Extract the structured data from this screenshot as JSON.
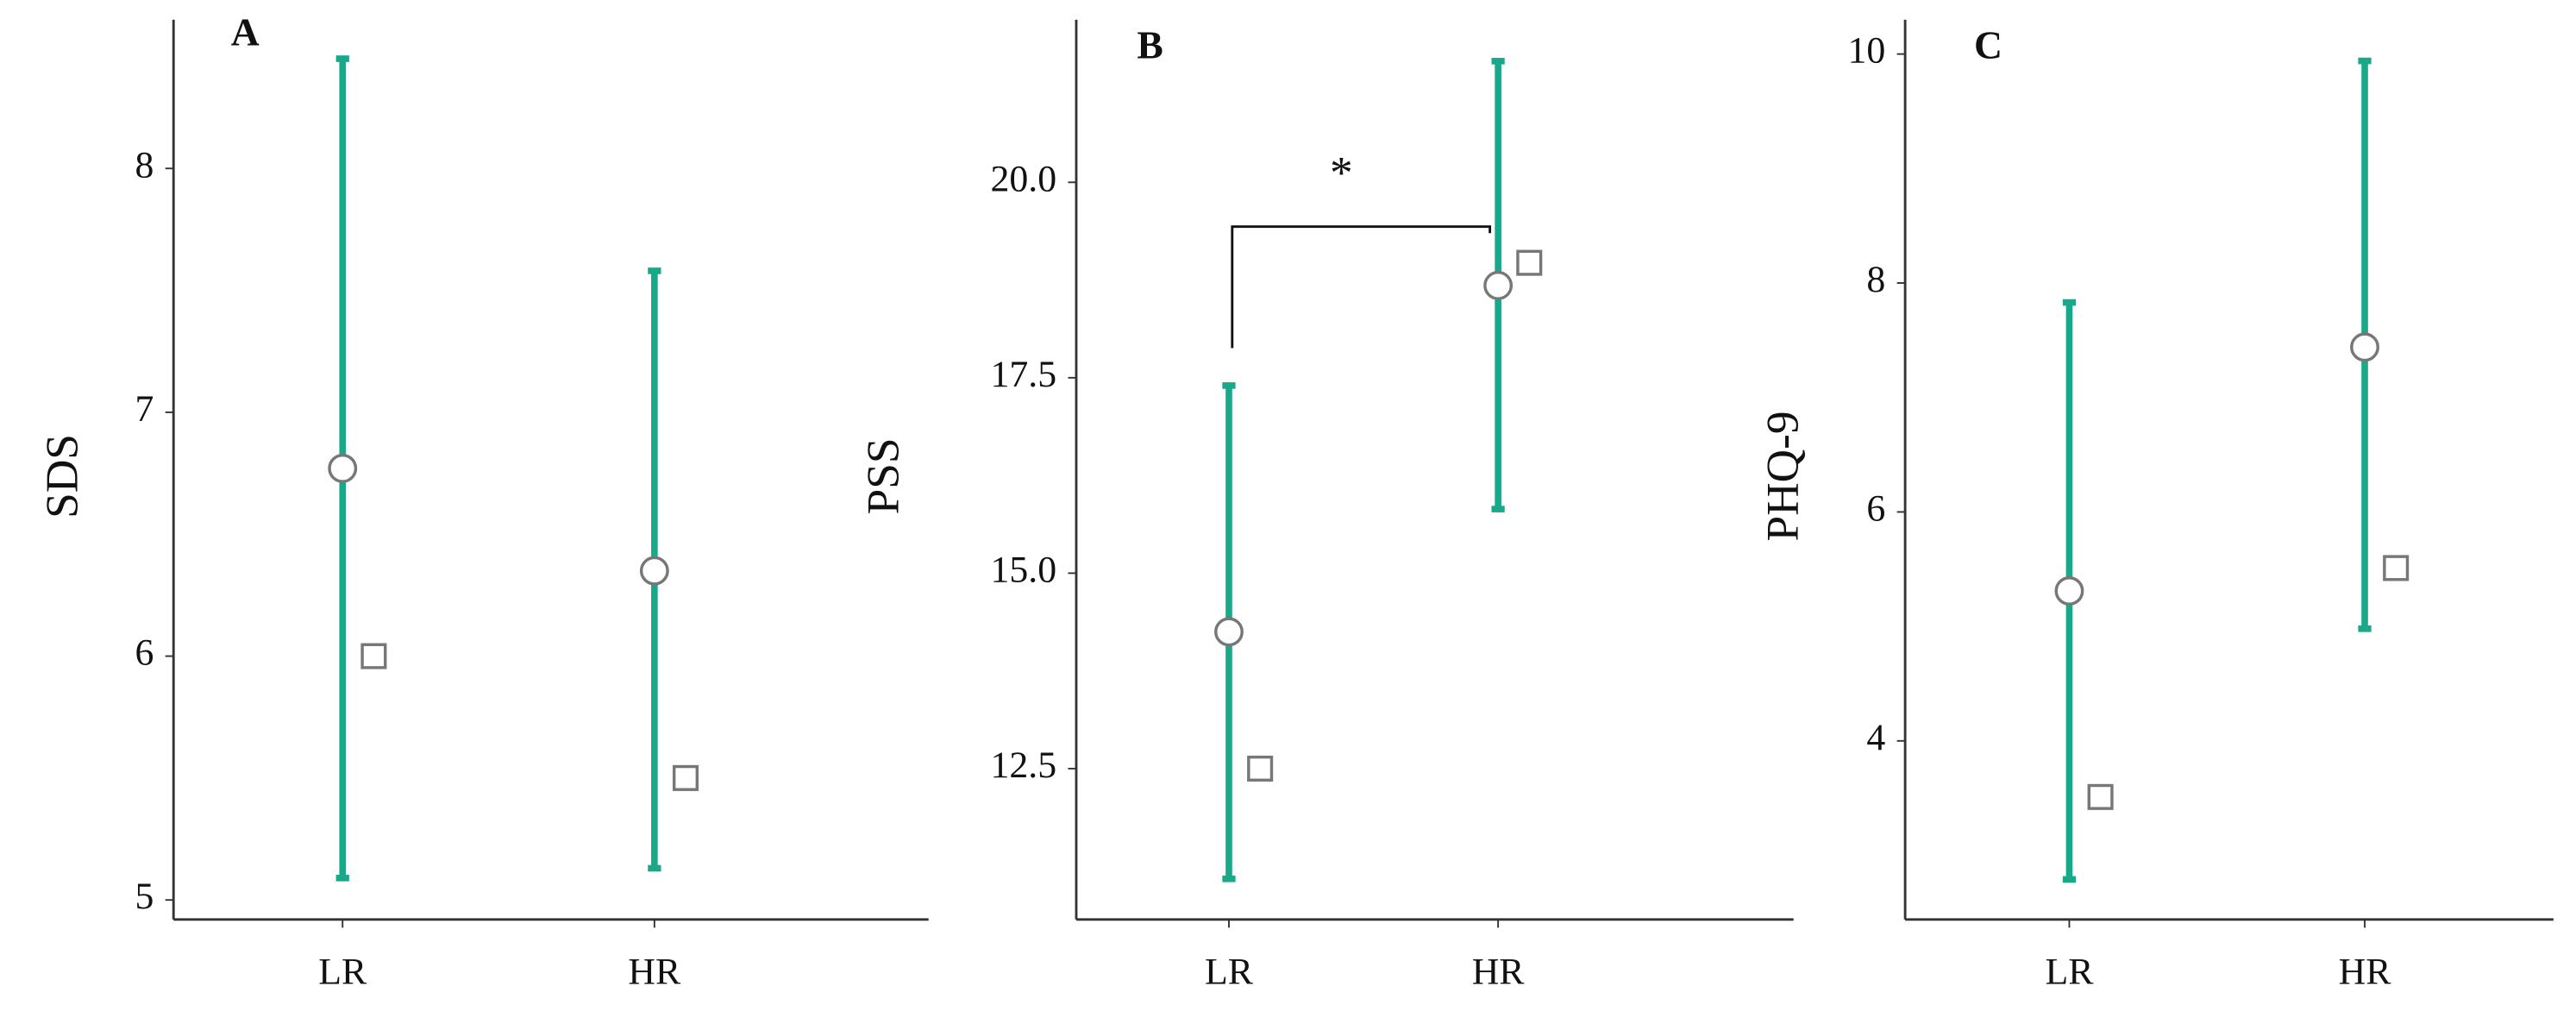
{
  "chart_data": [
    {
      "type": "errorbar",
      "panel_label": "A",
      "y_label": "SDS",
      "categories": [
        "LR",
        "HR"
      ],
      "values": [
        6.77,
        6.35
      ],
      "lower": [
        5.09,
        5.13
      ],
      "upper": [
        8.45,
        7.58
      ],
      "square_values": [
        6.0,
        5.5
      ],
      "color": "#1aa88a",
      "ylim": [
        4.92,
        8.61
      ],
      "yticks": [
        5,
        6,
        7,
        8
      ]
    },
    {
      "type": "errorbar",
      "panel_label": "B",
      "y_label": "PSS",
      "annotation": "*",
      "categories": [
        "LR",
        "HR"
      ],
      "values": [
        14.25,
        18.68
      ],
      "lower": [
        11.09,
        15.82
      ],
      "upper": [
        17.4,
        21.55
      ],
      "square_values": [
        12.5,
        18.97
      ],
      "color": "#1aa88a",
      "ylim": [
        10.57,
        22.08
      ],
      "yticks": [
        12.5,
        {
          "value": 15,
          "label": "15.0"
        },
        17.5,
        {
          "value": 20,
          "label": "20.0"
        }
      ]
    },
    {
      "type": "errorbar",
      "panel_label": "C",
      "y_label": "PHQ-9",
      "categories": [
        "LR",
        "HR"
      ],
      "values": [
        5.31,
        7.44
      ],
      "lower": [
        2.79,
        4.98
      ],
      "upper": [
        7.83,
        9.94
      ],
      "square_values": [
        3.51,
        5.51
      ],
      "color": "#1aa88a",
      "ylim": [
        2.44,
        10.3
      ],
      "yticks": [
        4,
        6,
        8,
        10
      ]
    }
  ]
}
